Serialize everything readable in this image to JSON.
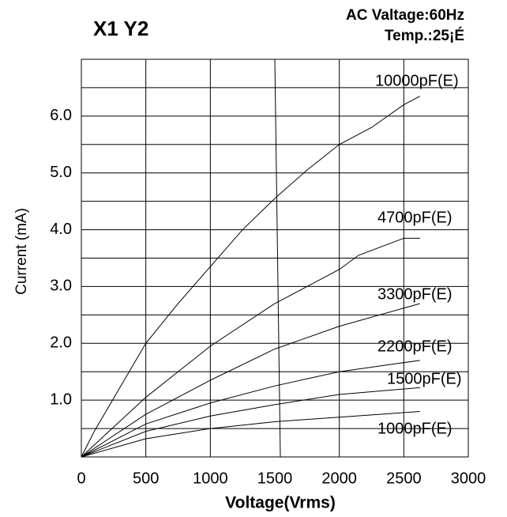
{
  "chart_data": {
    "type": "line",
    "title": "X1  Y2",
    "annotations": [
      "AC Valtage:60Hz",
      "Temp.:25¡É"
    ],
    "x_label": "Voltage(Vrms)",
    "y_label": "Current (mA)",
    "xlim": [
      0,
      3000
    ],
    "xticks": [
      0,
      500,
      1000,
      1500,
      2000,
      2500,
      3000
    ],
    "ylim": [
      0,
      7
    ],
    "yticks": [
      {
        "value": 1,
        "label": "1.0"
      },
      {
        "value": 2,
        "label": "2.0"
      },
      {
        "value": 3,
        "label": "3.0"
      },
      {
        "value": 4,
        "label": "4.0"
      },
      {
        "value": 5,
        "label": "5.0"
      },
      {
        "value": 6,
        "label": "6.0"
      }
    ],
    "ygrid": [
      0.5,
      1,
      1.5,
      2,
      2.5,
      3,
      3.5,
      4,
      4.5,
      5,
      5.5,
      6,
      6.5
    ],
    "grid": true,
    "series": [
      {
        "name": "10000pF(E)",
        "color": "#000000",
        "x": [
          0,
          100,
          500,
          750,
          1000,
          1250,
          1500,
          1750,
          2000,
          2250,
          2500,
          2625
        ],
        "values": [
          0,
          0.45,
          2.0,
          2.7,
          3.35,
          4.0,
          4.55,
          5.05,
          5.5,
          5.8,
          6.2,
          6.35
        ]
      },
      {
        "name": "4700pF(E)",
        "color": "#000000",
        "x": [
          0,
          500,
          750,
          1000,
          1500,
          1750,
          2000,
          2150,
          2500,
          2625
        ],
        "values": [
          0,
          1.05,
          1.5,
          1.95,
          2.7,
          3.0,
          3.3,
          3.55,
          3.85,
          3.85
        ]
      },
      {
        "name": "3300pF(E)",
        "color": "#000000",
        "x": [
          0,
          500,
          1000,
          1500,
          2000,
          2625
        ],
        "values": [
          0,
          0.75,
          1.35,
          1.9,
          2.3,
          2.7
        ]
      },
      {
        "name": "2200pF(E)",
        "color": "#000000",
        "x": [
          0,
          500,
          1000,
          1500,
          2000,
          2625
        ],
        "values": [
          0,
          0.58,
          0.95,
          1.25,
          1.5,
          1.7
        ]
      },
      {
        "name": "1500pF(E)",
        "color": "#000000",
        "x": [
          0,
          500,
          1000,
          1500,
          2000,
          2625
        ],
        "values": [
          0,
          0.45,
          0.72,
          0.92,
          1.1,
          1.22
        ]
      },
      {
        "name": "1000pF(E)",
        "color": "#000000",
        "x": [
          0,
          500,
          1000,
          1500,
          2000,
          2625
        ],
        "values": [
          0,
          0.32,
          0.5,
          0.62,
          0.7,
          0.8
        ]
      }
    ]
  }
}
